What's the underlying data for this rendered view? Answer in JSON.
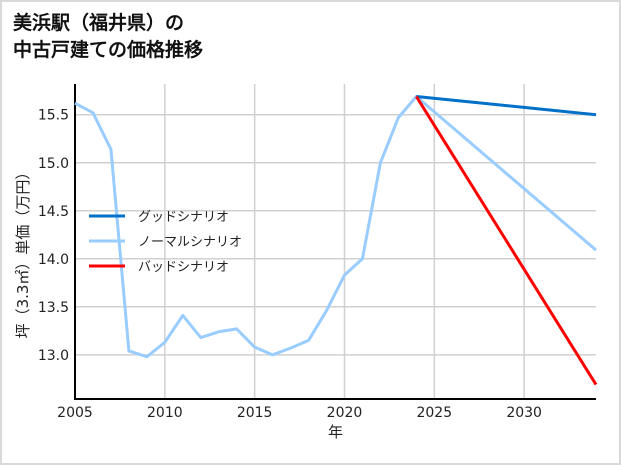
{
  "title_line1": "美浜駅（福井県）の",
  "title_line2": "中古戸建ての価格推移",
  "chart_data": {
    "type": "line",
    "title": "美浜駅（福井県）の中古戸建ての価格推移",
    "xlabel": "年",
    "ylabel": "坪（3.3㎡）単価（万円）",
    "xlim": [
      2005,
      2034
    ],
    "ylim": [
      12.54,
      15.82
    ],
    "xticks": [
      2005,
      2010,
      2015,
      2020,
      2025,
      2030
    ],
    "yticks": [
      13.0,
      13.5,
      14.0,
      14.5,
      15.0,
      15.5
    ],
    "ytick_labels": [
      "13.0",
      "13.5",
      "14.0",
      "14.5",
      "15.0",
      "15.5"
    ],
    "grid": true,
    "legend_position": "center-left",
    "series": [
      {
        "name": "グッドシナリオ",
        "color": "#0070c8",
        "x": [
          2024,
          2034
        ],
        "y": [
          15.69,
          15.5
        ]
      },
      {
        "name": "ノーマルシナリオ",
        "color": "#99ccff",
        "x": [
          2005,
          2006,
          2007,
          2008,
          2009,
          2010,
          2011,
          2012,
          2013,
          2014,
          2015,
          2016,
          2017,
          2018,
          2019,
          2020,
          2021,
          2022,
          2023,
          2024,
          2034
        ],
        "y": [
          15.62,
          15.52,
          15.14,
          13.04,
          12.98,
          13.13,
          13.41,
          13.18,
          13.24,
          13.27,
          13.08,
          13.0,
          13.07,
          13.15,
          13.46,
          13.83,
          14.0,
          15.0,
          15.47,
          15.69,
          14.09
        ]
      },
      {
        "name": "バッドシナリオ",
        "color": "#ff0000",
        "x": [
          2024,
          2034
        ],
        "y": [
          15.69,
          12.69
        ]
      }
    ]
  }
}
